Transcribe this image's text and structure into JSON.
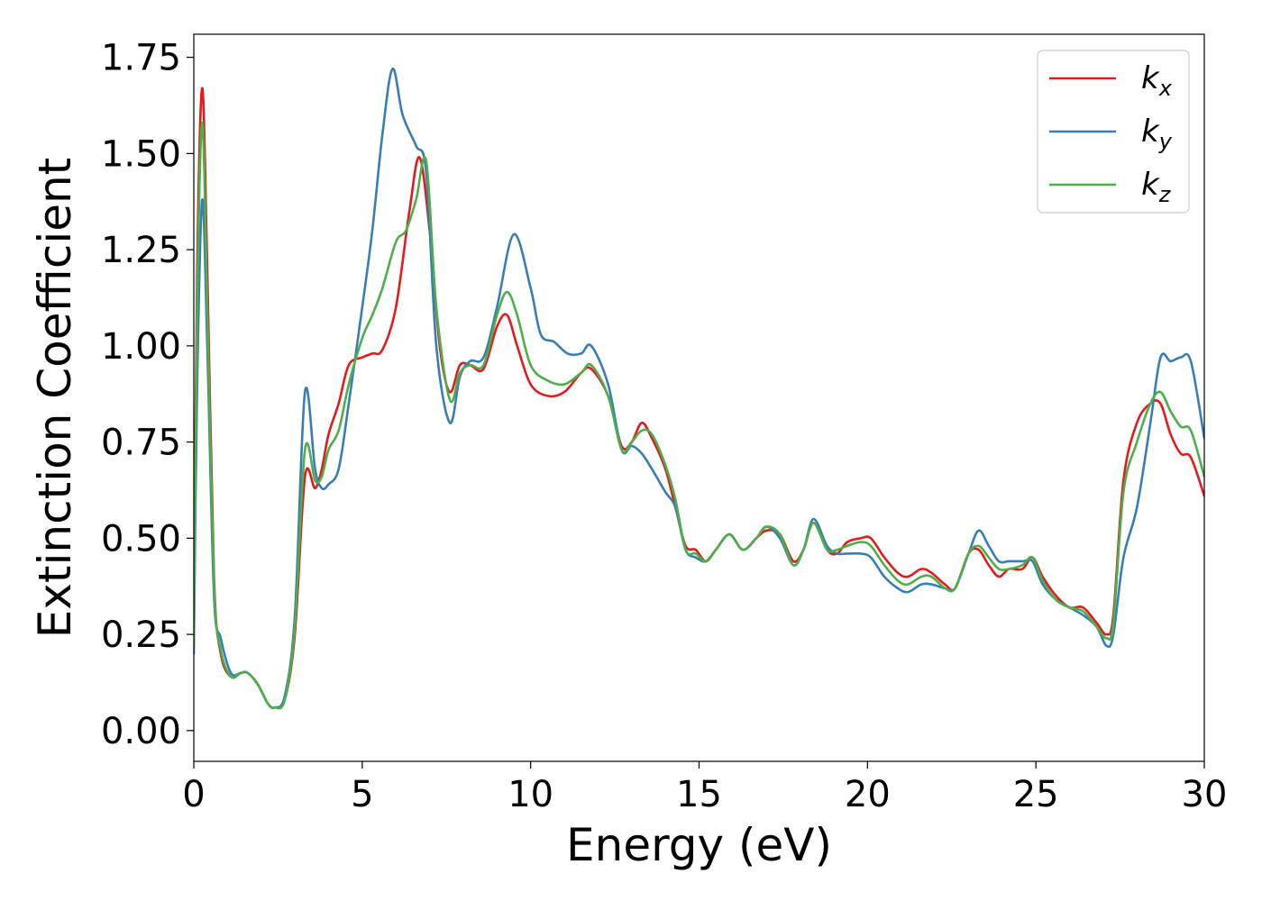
{
  "chart_data": {
    "type": "line",
    "title": "",
    "xlabel": "Energy (eV)",
    "ylabel": "Extinction Coefficient",
    "xlim": [
      0,
      30
    ],
    "ylim": [
      -0.08,
      1.81
    ],
    "xticks": [
      0,
      5,
      10,
      15,
      20,
      25,
      30
    ],
    "xtick_labels": [
      "0",
      "5",
      "10",
      "15",
      "20",
      "25",
      "30"
    ],
    "yticks": [
      0.0,
      0.25,
      0.5,
      0.75,
      1.0,
      1.25,
      1.5,
      1.75
    ],
    "ytick_labels": [
      "0.00",
      "0.25",
      "0.50",
      "0.75",
      "1.00",
      "1.25",
      "1.50",
      "1.75"
    ],
    "grid": false,
    "legend_position": "top-right",
    "series": [
      {
        "name": "k_x",
        "label_base": "k",
        "label_sub": "x",
        "color": "#e41a1c",
        "x": [
          0,
          0.1,
          0.25,
          0.4,
          0.6,
          0.8,
          1.1,
          1.4,
          1.6,
          1.9,
          2.2,
          2.4,
          2.7,
          3.0,
          3.3,
          3.6,
          3.8,
          4.0,
          4.3,
          4.6,
          5.0,
          5.3,
          5.6,
          6.0,
          6.4,
          6.7,
          7.0,
          7.3,
          7.6,
          7.9,
          8.2,
          8.6,
          9.0,
          9.3,
          9.6,
          10.0,
          10.5,
          11.0,
          11.5,
          11.8,
          12.3,
          12.7,
          13.0,
          13.3,
          13.6,
          14.0,
          14.3,
          14.6,
          14.9,
          15.2,
          15.5,
          15.9,
          16.3,
          16.7,
          17.0,
          17.4,
          17.8,
          18.1,
          18.4,
          18.8,
          19.1,
          19.4,
          19.8,
          20.1,
          20.5,
          20.9,
          21.2,
          21.6,
          21.9,
          22.3,
          22.6,
          23.0,
          23.3,
          23.6,
          23.9,
          24.2,
          24.6,
          24.9,
          25.2,
          25.6,
          26.0,
          26.4,
          26.8,
          27.1,
          27.3,
          27.6,
          28.0,
          28.4,
          28.7,
          29.0,
          29.3,
          29.6,
          30.0
        ],
        "y": [
          0.25,
          1.2,
          1.67,
          1.2,
          0.4,
          0.2,
          0.14,
          0.15,
          0.15,
          0.12,
          0.07,
          0.06,
          0.08,
          0.25,
          0.66,
          0.63,
          0.68,
          0.77,
          0.85,
          0.95,
          0.97,
          0.98,
          0.99,
          1.1,
          1.35,
          1.49,
          1.3,
          1.0,
          0.88,
          0.95,
          0.95,
          0.94,
          1.05,
          1.08,
          1.0,
          0.9,
          0.87,
          0.88,
          0.93,
          0.94,
          0.87,
          0.74,
          0.75,
          0.8,
          0.76,
          0.68,
          0.58,
          0.48,
          0.47,
          0.44,
          0.47,
          0.51,
          0.47,
          0.5,
          0.52,
          0.51,
          0.44,
          0.47,
          0.54,
          0.47,
          0.46,
          0.49,
          0.5,
          0.5,
          0.45,
          0.41,
          0.4,
          0.42,
          0.41,
          0.38,
          0.37,
          0.46,
          0.47,
          0.43,
          0.4,
          0.42,
          0.42,
          0.45,
          0.4,
          0.35,
          0.32,
          0.32,
          0.28,
          0.25,
          0.3,
          0.65,
          0.8,
          0.85,
          0.85,
          0.77,
          0.72,
          0.71,
          0.61
        ]
      },
      {
        "name": "k_y",
        "label_base": "k",
        "label_sub": "y",
        "color": "#377eb8",
        "x": [
          0,
          0.1,
          0.25,
          0.4,
          0.6,
          0.8,
          1.1,
          1.4,
          1.6,
          1.9,
          2.2,
          2.4,
          2.7,
          3.0,
          3.3,
          3.6,
          3.8,
          4.0,
          4.3,
          4.6,
          5.0,
          5.3,
          5.6,
          5.9,
          6.2,
          6.6,
          6.9,
          7.2,
          7.6,
          7.9,
          8.2,
          8.6,
          9.0,
          9.5,
          10.0,
          10.3,
          10.7,
          11.1,
          11.5,
          11.8,
          12.3,
          12.7,
          13.0,
          13.3,
          13.6,
          14.0,
          14.3,
          14.6,
          14.9,
          15.2,
          15.5,
          15.9,
          16.3,
          16.7,
          17.0,
          17.4,
          17.8,
          18.1,
          18.4,
          18.8,
          19.1,
          19.4,
          19.8,
          20.1,
          20.5,
          20.9,
          21.2,
          21.6,
          21.9,
          22.3,
          22.6,
          23.0,
          23.3,
          23.6,
          23.9,
          24.2,
          24.6,
          24.9,
          25.2,
          25.6,
          26.0,
          26.4,
          26.8,
          27.1,
          27.3,
          27.6,
          28.0,
          28.4,
          28.7,
          29.0,
          29.3,
          29.6,
          30.0
        ],
        "y": [
          0.2,
          0.9,
          1.38,
          1.0,
          0.35,
          0.24,
          0.15,
          0.15,
          0.15,
          0.12,
          0.07,
          0.06,
          0.09,
          0.3,
          0.88,
          0.68,
          0.63,
          0.64,
          0.68,
          0.85,
          1.1,
          1.3,
          1.55,
          1.72,
          1.6,
          1.52,
          1.45,
          1.0,
          0.8,
          0.92,
          0.96,
          0.97,
          1.1,
          1.29,
          1.15,
          1.03,
          1.01,
          0.98,
          0.98,
          1.0,
          0.9,
          0.73,
          0.74,
          0.72,
          0.68,
          0.62,
          0.58,
          0.47,
          0.45,
          0.44,
          0.47,
          0.51,
          0.47,
          0.5,
          0.53,
          0.5,
          0.43,
          0.47,
          0.55,
          0.48,
          0.46,
          0.46,
          0.46,
          0.45,
          0.4,
          0.37,
          0.36,
          0.38,
          0.38,
          0.37,
          0.37,
          0.46,
          0.52,
          0.48,
          0.44,
          0.44,
          0.44,
          0.44,
          0.38,
          0.34,
          0.32,
          0.3,
          0.27,
          0.22,
          0.25,
          0.45,
          0.58,
          0.8,
          0.97,
          0.96,
          0.97,
          0.96,
          0.76
        ]
      },
      {
        "name": "k_z",
        "label_base": "k",
        "label_sub": "z",
        "color": "#4daf4a",
        "x": [
          0,
          0.1,
          0.25,
          0.4,
          0.6,
          0.8,
          1.1,
          1.4,
          1.6,
          1.9,
          2.2,
          2.4,
          2.7,
          3.0,
          3.3,
          3.6,
          3.8,
          4.0,
          4.3,
          4.6,
          5.0,
          5.3,
          5.6,
          6.0,
          6.3,
          6.6,
          6.9,
          7.2,
          7.6,
          7.9,
          8.2,
          8.6,
          9.0,
          9.3,
          9.6,
          10.0,
          10.5,
          11.0,
          11.5,
          11.8,
          12.3,
          12.7,
          13.0,
          13.3,
          13.6,
          14.0,
          14.3,
          14.6,
          14.9,
          15.2,
          15.5,
          15.9,
          16.3,
          16.7,
          17.0,
          17.4,
          17.8,
          18.1,
          18.4,
          18.8,
          19.1,
          19.4,
          19.8,
          20.1,
          20.5,
          20.9,
          21.2,
          21.6,
          21.9,
          22.3,
          22.6,
          23.0,
          23.3,
          23.6,
          23.9,
          24.2,
          24.6,
          24.9,
          25.2,
          25.6,
          26.0,
          26.4,
          26.8,
          27.1,
          27.3,
          27.6,
          28.0,
          28.4,
          28.7,
          29.0,
          29.3,
          29.6,
          30.0
        ],
        "y": [
          0.22,
          1.1,
          1.58,
          1.1,
          0.38,
          0.21,
          0.14,
          0.15,
          0.15,
          0.12,
          0.07,
          0.06,
          0.08,
          0.27,
          0.73,
          0.65,
          0.66,
          0.73,
          0.78,
          0.9,
          1.02,
          1.08,
          1.15,
          1.27,
          1.3,
          1.38,
          1.48,
          1.1,
          0.86,
          0.93,
          0.95,
          0.95,
          1.08,
          1.14,
          1.08,
          0.95,
          0.91,
          0.9,
          0.93,
          0.95,
          0.87,
          0.73,
          0.75,
          0.78,
          0.77,
          0.69,
          0.6,
          0.47,
          0.46,
          0.44,
          0.47,
          0.51,
          0.47,
          0.5,
          0.53,
          0.51,
          0.43,
          0.47,
          0.54,
          0.47,
          0.47,
          0.48,
          0.49,
          0.48,
          0.43,
          0.39,
          0.38,
          0.4,
          0.4,
          0.37,
          0.37,
          0.46,
          0.48,
          0.45,
          0.42,
          0.42,
          0.43,
          0.45,
          0.39,
          0.34,
          0.32,
          0.31,
          0.27,
          0.24,
          0.28,
          0.62,
          0.75,
          0.85,
          0.88,
          0.83,
          0.79,
          0.78,
          0.66
        ]
      }
    ]
  }
}
